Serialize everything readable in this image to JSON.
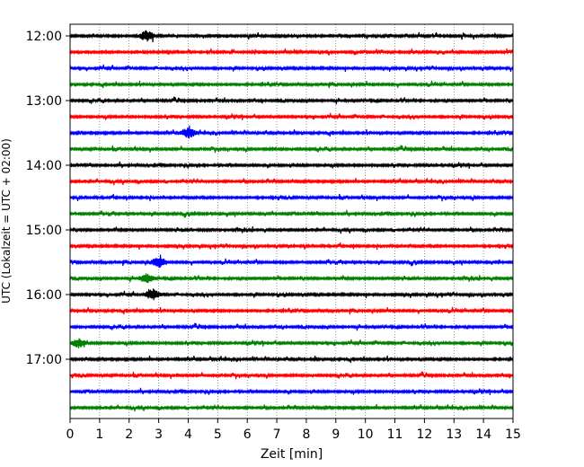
{
  "chart_data": {
    "type": "line",
    "title": "",
    "xlabel": "Zeit  [min]",
    "ylabel": "UTC (Lokalzeit = UTC + 02:00)",
    "xlim": [
      0,
      15
    ],
    "x_ticks": [
      0,
      1,
      2,
      3,
      4,
      5,
      6,
      7,
      8,
      9,
      10,
      11,
      12,
      13,
      14,
      15
    ],
    "y_tick_labels": [
      "12:00",
      "13:00",
      "14:00",
      "15:00",
      "16:00",
      "17:00"
    ],
    "trace_interval_min": 15,
    "trace_colors": [
      "#000000",
      "#ff0000",
      "#0000ff",
      "#008000"
    ],
    "traces": [
      {
        "start": "12:00"
      },
      {
        "start": "12:15"
      },
      {
        "start": "12:30"
      },
      {
        "start": "12:45"
      },
      {
        "start": "13:00"
      },
      {
        "start": "13:15"
      },
      {
        "start": "13:30"
      },
      {
        "start": "13:45"
      },
      {
        "start": "14:00"
      },
      {
        "start": "14:15"
      },
      {
        "start": "14:30"
      },
      {
        "start": "14:45"
      },
      {
        "start": "15:00"
      },
      {
        "start": "15:15"
      },
      {
        "start": "15:30"
      },
      {
        "start": "15:45"
      },
      {
        "start": "16:00"
      },
      {
        "start": "16:15"
      },
      {
        "start": "16:30"
      },
      {
        "start": "16:45"
      },
      {
        "start": "17:00"
      },
      {
        "start": "17:15"
      },
      {
        "start": "17:30"
      },
      {
        "start": "17:45"
      }
    ],
    "events": [
      {
        "trace": "12:00",
        "minute": 2.6,
        "amplitude": 6
      },
      {
        "trace": "13:30",
        "minute": 4.0,
        "amplitude": 6
      },
      {
        "trace": "15:30",
        "minute": 3.0,
        "amplitude": 6
      },
      {
        "trace": "15:45",
        "minute": 2.6,
        "amplitude": 5
      },
      {
        "trace": "16:00",
        "minute": 2.8,
        "amplitude": 6
      },
      {
        "trace": "16:45",
        "minute": 0.3,
        "amplitude": 5
      }
    ],
    "grid": "vertical-dotted",
    "legend": "none"
  }
}
